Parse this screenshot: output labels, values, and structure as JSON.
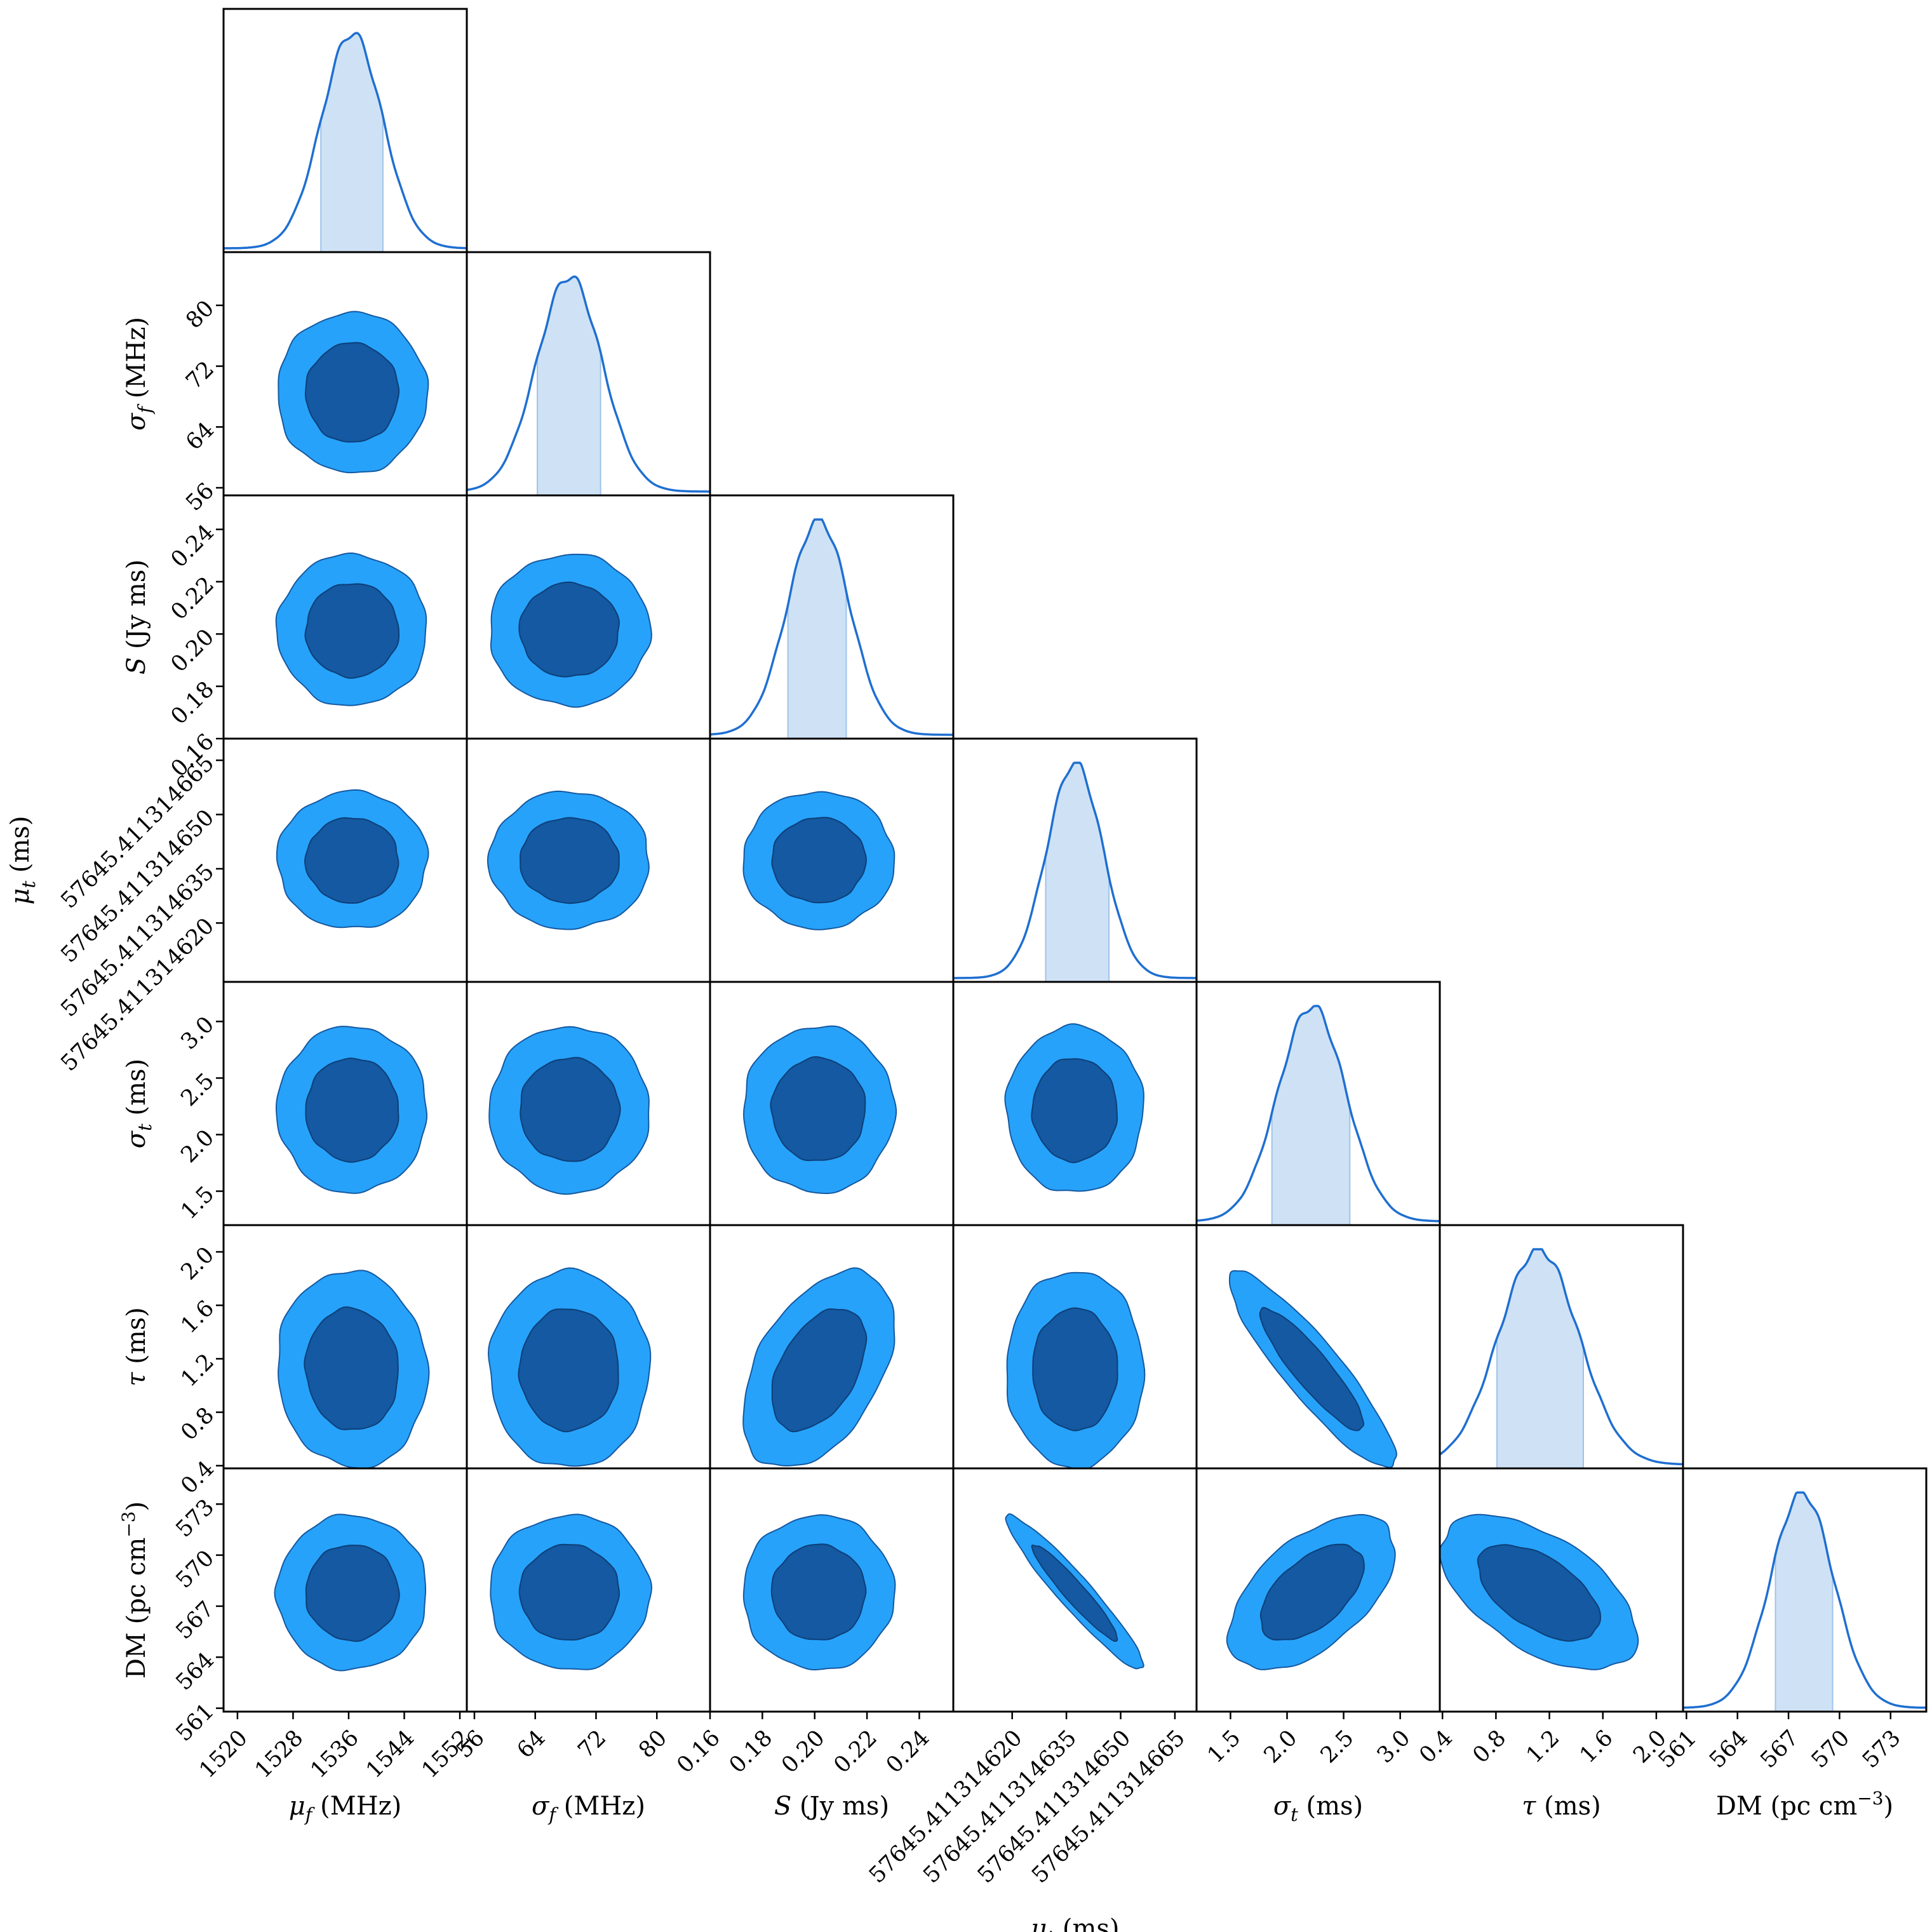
{
  "colors": {
    "inner_contour": "#1459a1",
    "outer_contour": "#27a2fa",
    "marginal_line": "#1f6fd1",
    "marginal_band": "#cfe2f5"
  },
  "chart_data": {
    "type": "corner",
    "description_levels": [
      "inner",
      "outer"
    ],
    "parameters": [
      {
        "name": "mu_f",
        "label_text": "μ_f (MHz)",
        "label_main": "μ",
        "label_sub": "f",
        "label_unit": "(MHz)",
        "range": [
          1518,
          1553
        ],
        "ticks": [
          1520,
          1528,
          1536,
          1544,
          1552
        ],
        "tick_labels": [
          "1520",
          "1528",
          "1536",
          "1544",
          "1552"
        ],
        "mean": 1536.5,
        "sigma": 4.4,
        "band": [
          1532,
          1541
        ]
      },
      {
        "name": "sigma_f",
        "label_text": "σ_f (MHz)",
        "label_main": "σ",
        "label_sub": "f",
        "label_unit": "(MHz)",
        "range": [
          55,
          87
        ],
        "ticks": [
          56,
          64,
          72,
          80
        ],
        "tick_labels": [
          "56",
          "64",
          "72",
          "80"
        ],
        "mean": 68.5,
        "sigma": 4.3,
        "band": [
          64.2,
          72.6
        ]
      },
      {
        "name": "S",
        "label_text": "S (Jy ms)",
        "label_main": "S",
        "label_sub": "",
        "label_unit": "(Jy ms)",
        "range": [
          0.16,
          0.253
        ],
        "ticks": [
          0.16,
          0.18,
          0.2,
          0.22,
          0.24
        ],
        "tick_labels": [
          "0.16",
          "0.18",
          "0.20",
          "0.22",
          "0.24"
        ],
        "mean": 0.2015,
        "sigma": 0.0118,
        "band": [
          0.1895,
          0.2125
        ]
      },
      {
        "name": "mu_t",
        "label_text": "μ_t (ms)",
        "label_main": "μ",
        "label_sub": "t",
        "label_unit": "(ms)",
        "range": [
          0,
          1
        ],
        "ticks": [
          0.242,
          0.465,
          0.688,
          0.911
        ],
        "tick_labels": [
          "57645.411314620",
          "57645.411314635",
          "57645.411314650",
          "57645.411314665"
        ],
        "mean": 0.5,
        "sigma": 0.115,
        "band": [
          0.378,
          0.643
        ]
      },
      {
        "name": "sigma_t",
        "label_text": "σ_t (ms)",
        "label_main": "σ",
        "label_sub": "t",
        "label_unit": "(ms)",
        "range": [
          1.2,
          3.35
        ],
        "ticks": [
          1.5,
          2.0,
          2.5,
          3.0
        ],
        "tick_labels": [
          "1.5",
          "2.0",
          "2.5",
          "3.0"
        ],
        "mean": 2.22,
        "sigma": 0.3,
        "band": [
          1.86,
          2.56
        ]
      },
      {
        "name": "tau",
        "label_text": "τ (ms)",
        "label_main": "τ",
        "label_sub": "",
        "label_unit": "(ms)",
        "range": [
          0.38,
          2.2
        ],
        "ticks": [
          0.4,
          0.8,
          1.2,
          1.6,
          2.0
        ],
        "tick_labels": [
          "0.4",
          "0.8",
          "1.2",
          "1.6",
          "2.0"
        ],
        "mean": 1.12,
        "sigma": 0.3,
        "band": [
          0.8,
          1.46
        ]
      },
      {
        "name": "DM",
        "label_text": "DM (pc cm−3)",
        "label_main": "DM",
        "label_sub": "",
        "label_unit": "(pc cm",
        "label_sup": "−3",
        "range": [
          560.8,
          575.1
        ],
        "ticks": [
          561,
          564,
          567,
          570,
          573
        ],
        "tick_labels": [
          "561",
          "564",
          "567",
          "570",
          "573"
        ],
        "mean": 567.8,
        "sigma": 1.85,
        "band": [
          566.2,
          569.6
        ]
      }
    ],
    "correlations": [
      [
        1,
        0,
        0,
        0,
        0,
        -0.05,
        0
      ],
      [
        0,
        1,
        0,
        0,
        0,
        0,
        0
      ],
      [
        0,
        0,
        1,
        0,
        0,
        0.45,
        0
      ],
      [
        0,
        0,
        0,
        1,
        0,
        0,
        -0.95
      ],
      [
        0,
        0,
        0,
        0,
        1,
        -0.9,
        0.55
      ],
      [
        -0.05,
        0,
        0.45,
        0,
        -0.9,
        1,
        -0.55
      ],
      [
        0,
        0,
        0,
        -0.95,
        0.55,
        -0.55,
        1
      ]
    ]
  }
}
